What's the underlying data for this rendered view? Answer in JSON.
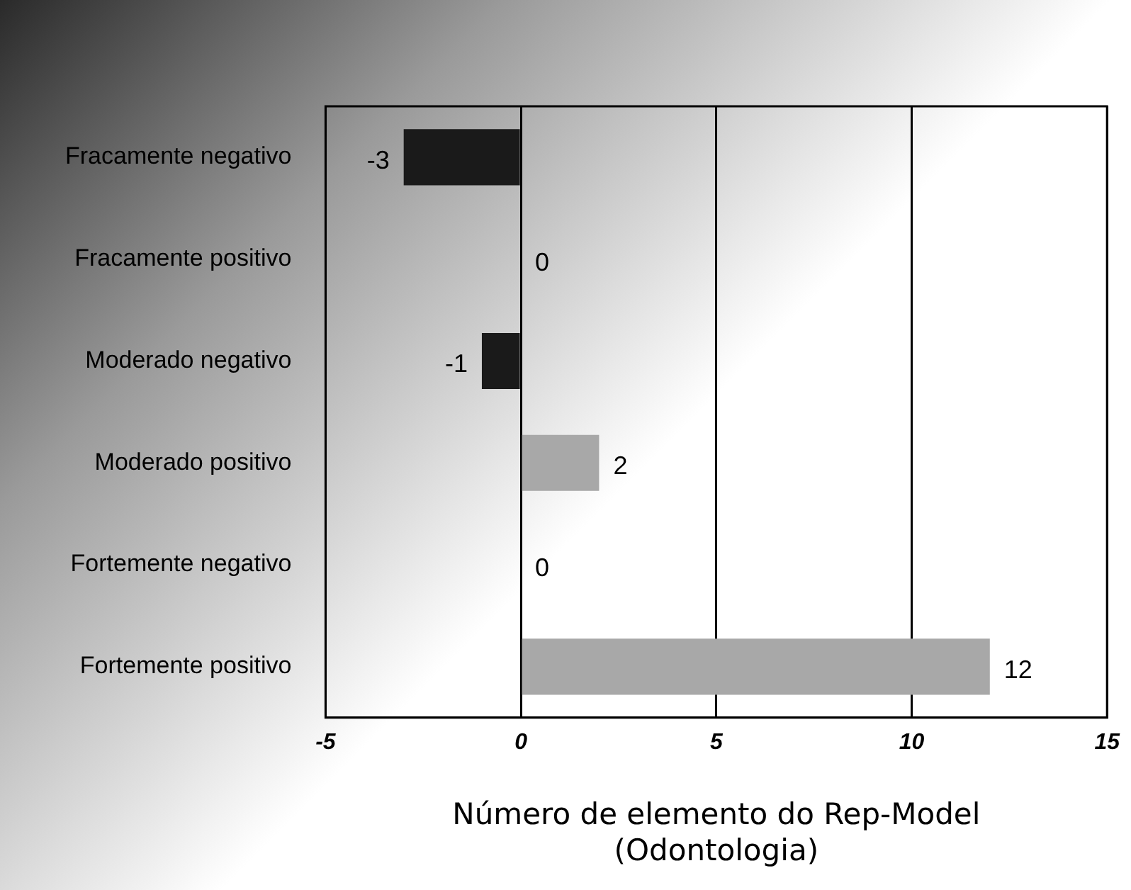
{
  "chart_data": {
    "type": "bar",
    "orientation": "horizontal",
    "categories": [
      "Fracamente negativo",
      "Fracamente positivo",
      "Moderado negativo",
      "Moderado positivo",
      "Fortemente negativo",
      "Fortemente positivo"
    ],
    "values": [
      -3,
      0,
      -1,
      2,
      0,
      12
    ],
    "colors": [
      "#1a1a1a",
      "#a8a8a8",
      "#1a1a1a",
      "#a8a8a8",
      "#1a1a1a",
      "#a8a8a8"
    ],
    "xlim": [
      -5,
      15
    ],
    "xticks": [
      -5,
      0,
      5,
      10,
      15
    ],
    "xlabel": "Número de elemento do Rep-Model\n(Odontologia)",
    "grid": "x",
    "data_labels": true,
    "legend": false
  }
}
